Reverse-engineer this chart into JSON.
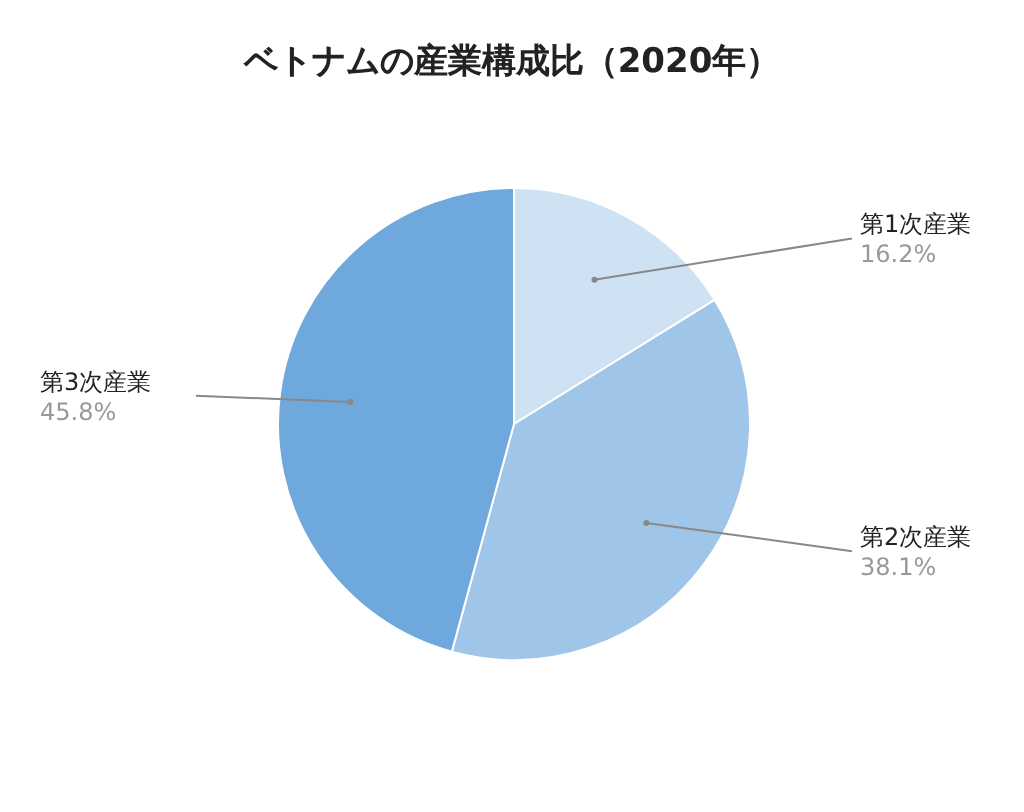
{
  "chart_data": {
    "type": "pie",
    "title": "ベトナムの産業構成比（2020年）",
    "categories": [
      "第1次産業",
      "第2次産業",
      "第3次産業"
    ],
    "values": [
      16.2,
      38.1,
      45.8
    ],
    "colors": [
      "#cfe2f3",
      "#9fc5e8",
      "#6fa8dc"
    ],
    "value_labels": [
      "16.2%",
      "38.1%",
      "45.8%"
    ],
    "legend": false
  }
}
